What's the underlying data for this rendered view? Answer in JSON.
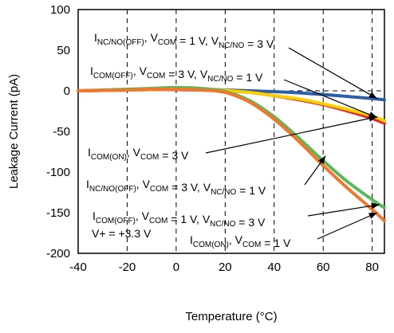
{
  "chart_data": {
    "type": "line",
    "xlabel": "Temperature (°C)",
    "ylabel": "Leakage Current (pA)",
    "xlim": [
      -40,
      85
    ],
    "ylim": [
      -200,
      100
    ],
    "xticks": [
      "-40",
      "-20",
      "0",
      "20",
      "40",
      "60",
      "80"
    ],
    "yticks": [
      "100",
      "50",
      "0",
      "-50",
      "-100",
      "-150",
      "-200"
    ],
    "grid": "vertical dashed",
    "series": [
      {
        "color": "#2b5ea8",
        "x": [
          -40,
          -30,
          -20,
          -10,
          0,
          10,
          20,
          30,
          40,
          50,
          60,
          70,
          80,
          85
        ],
        "y": [
          0,
          0.5,
          1,
          1.5,
          2,
          2,
          1,
          0,
          -1,
          -2.5,
          -4.5,
          -7,
          -9.5,
          -11
        ]
      },
      {
        "color": "#e8232a",
        "x": [
          -40,
          -30,
          -20,
          -10,
          0,
          10,
          20,
          30,
          40,
          50,
          60,
          70,
          80,
          85
        ],
        "y": [
          0,
          0.5,
          1,
          1.5,
          1.5,
          1,
          0,
          -2,
          -6,
          -11,
          -17,
          -25,
          -34,
          -40
        ]
      },
      {
        "color": "#f7d000",
        "x": [
          -40,
          -30,
          -20,
          -10,
          0,
          10,
          20,
          30,
          40,
          50,
          60,
          70,
          80,
          85
        ],
        "y": [
          0,
          0.5,
          1,
          1.5,
          2,
          2,
          0.5,
          -2,
          -6,
          -10,
          -16,
          -23,
          -31,
          -37
        ]
      },
      {
        "color": "#5cb85c",
        "x": [
          -40,
          -30,
          -20,
          -10,
          0,
          10,
          20,
          30,
          40,
          50,
          60,
          70,
          80,
          85
        ],
        "y": [
          0,
          1,
          2,
          3,
          4,
          3,
          -1,
          -12,
          -32,
          -58,
          -86,
          -112,
          -134,
          -144
        ]
      },
      {
        "color": "#f0782d",
        "x": [
          -40,
          -30,
          -20,
          -10,
          0,
          10,
          20,
          30,
          40,
          50,
          60,
          70,
          80,
          85
        ],
        "y": [
          0,
          0.5,
          1,
          2,
          2,
          1,
          -2,
          -14,
          -35,
          -62,
          -92,
          -120,
          -146,
          -160
        ]
      }
    ],
    "annotations": [
      {
        "main": [
          "I",
          "V",
          " = 1 V, V",
          " = 3 V"
        ],
        "subs": [
          "NC/NO(OFF)",
          "COM",
          "NC/NO"
        ],
        "arrow_to": [
          82,
          -9.5
        ]
      },
      {
        "main": [
          "I",
          "V",
          " = 3 V, V",
          " = 1 V"
        ],
        "subs": [
          "COM(OFF)",
          "COM",
          "NC/NO"
        ],
        "arrow_to": [
          82,
          -33
        ]
      },
      {
        "main": [
          "I",
          "V",
          " = 3 V"
        ],
        "subs": [
          "COM(ON)",
          "COM"
        ],
        "arrow_to": [
          82,
          -32
        ]
      },
      {
        "main": [
          "I",
          "V",
          " = 3 V, V",
          " = 1 V"
        ],
        "subs": [
          "NC/NO(OFF)",
          "COM",
          "NC/NO"
        ],
        "arrow_to": [
          61,
          -80
        ]
      },
      {
        "main": [
          "I",
          "V",
          " = 1 V, V",
          " = 3 V"
        ],
        "subs": [
          "COM(OFF)",
          "COM",
          "NC/NO"
        ],
        "arrow_to": [
          83,
          -140
        ]
      },
      {
        "main": [
          "I",
          "V",
          " = 1 V"
        ],
        "subs": [
          "COM(ON)",
          "COM"
        ],
        "arrow_to": [
          82,
          -150
        ]
      }
    ],
    "supply_note": "V+ = +3.3 V"
  }
}
